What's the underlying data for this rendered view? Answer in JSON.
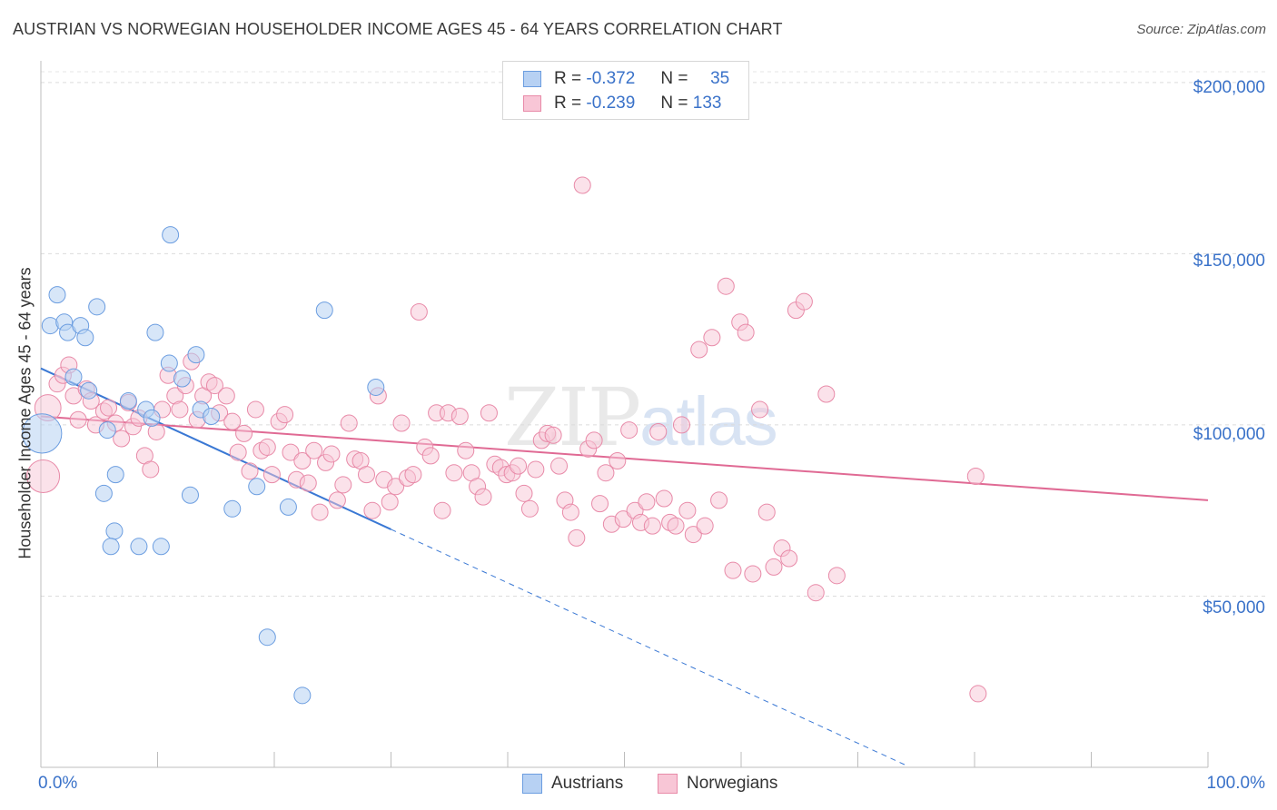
{
  "header": {
    "title": "AUSTRIAN VS NORWEGIAN HOUSEHOLDER INCOME AGES 45 - 64 YEARS CORRELATION CHART",
    "source": "Source: ZipAtlas.com"
  },
  "watermark": {
    "zip": "ZIP",
    "atlas": "atlas"
  },
  "legend": {
    "rows": [
      {
        "r_label": "R =",
        "r_value": "-0.372",
        "n_label": "N =",
        "n_value": "35"
      },
      {
        "r_label": "R =",
        "r_value": "-0.239",
        "n_label": "N =",
        "n_value": "133"
      }
    ]
  },
  "colors": {
    "austrians_fill": "#b7d1f3",
    "austrians_stroke": "#6b9de0",
    "austrians_line": "#3a78d4",
    "norwegians_fill": "#f8c6d6",
    "norwegians_stroke": "#e88aa8",
    "norwegians_line": "#e06a94",
    "tick_text": "#3a72c9"
  },
  "chart_data": {
    "type": "scatter",
    "title": "AUSTRIAN VS NORWEGIAN HOUSEHOLDER INCOME AGES 45 - 64 YEARS CORRELATION CHART",
    "xlabel": "",
    "ylabel": "Householder Income Ages 45 - 64 years",
    "xlim": [
      0,
      100
    ],
    "ylim": [
      0,
      205000
    ],
    "x_ticks": [
      "0.0%",
      "100.0%"
    ],
    "y_ticks": [
      {
        "value": 50000,
        "label": "$50,000"
      },
      {
        "value": 100000,
        "label": "$100,000"
      },
      {
        "value": 150000,
        "label": "$150,000"
      },
      {
        "value": 200000,
        "label": "$200,000"
      }
    ],
    "grid": true,
    "legend_position": "bottom-center",
    "series": [
      {
        "name": "Austrians",
        "trend": {
          "x": [
            0,
            30
          ],
          "y": [
            116500,
            69500
          ],
          "dashed_to_x": 74,
          "dashed_to_y": 800
        },
        "points": [
          [
            0.1,
            97500,
            2.4
          ],
          [
            1.4,
            138000,
            1
          ],
          [
            0.8,
            129000,
            1
          ],
          [
            2.0,
            130000,
            1
          ],
          [
            2.3,
            127000,
            1
          ],
          [
            3.4,
            129000,
            1
          ],
          [
            3.8,
            125500,
            1
          ],
          [
            4.8,
            134500,
            1
          ],
          [
            2.8,
            114000,
            1
          ],
          [
            4.1,
            110000,
            1
          ],
          [
            5.7,
            98500,
            1
          ],
          [
            7.5,
            107000,
            1
          ],
          [
            9.0,
            104500,
            1
          ],
          [
            9.5,
            102000,
            1
          ],
          [
            9.8,
            127000,
            1
          ],
          [
            11.1,
            155500,
            1
          ],
          [
            11.0,
            118000,
            1
          ],
          [
            12.1,
            113500,
            1
          ],
          [
            13.3,
            120500,
            1
          ],
          [
            13.7,
            104500,
            1
          ],
          [
            14.6,
            102500,
            1
          ],
          [
            5.4,
            80000,
            1
          ],
          [
            6.3,
            69000,
            1
          ],
          [
            6.4,
            85500,
            1
          ],
          [
            8.4,
            64500,
            1
          ],
          [
            6.0,
            64500,
            1
          ],
          [
            10.3,
            64500,
            1
          ],
          [
            12.8,
            79500,
            1
          ],
          [
            16.4,
            75500,
            1
          ],
          [
            18.5,
            82000,
            1
          ],
          [
            21.2,
            76000,
            1
          ],
          [
            24.3,
            133500,
            1
          ],
          [
            28.7,
            111000,
            1
          ],
          [
            19.4,
            38000,
            1
          ],
          [
            22.4,
            21000,
            1
          ]
        ]
      },
      {
        "name": "Norwegians",
        "trend": {
          "x": [
            0,
            100
          ],
          "y": [
            102500,
            78000
          ]
        },
        "points": [
          [
            0.2,
            85000,
            2.0
          ],
          [
            0.6,
            105000,
            1.6
          ],
          [
            1.4,
            112000,
            1
          ],
          [
            1.9,
            114500,
            1
          ],
          [
            2.4,
            117500,
            1
          ],
          [
            2.8,
            108500,
            1
          ],
          [
            3.2,
            101500,
            1
          ],
          [
            3.9,
            110500,
            1
          ],
          [
            4.3,
            107000,
            1
          ],
          [
            4.7,
            100000,
            1
          ],
          [
            5.4,
            104000,
            1
          ],
          [
            5.8,
            105000,
            1
          ],
          [
            6.4,
            100500,
            1
          ],
          [
            6.9,
            96000,
            1
          ],
          [
            7.5,
            106500,
            1
          ],
          [
            7.9,
            99500,
            1
          ],
          [
            8.4,
            102000,
            1
          ],
          [
            8.9,
            91000,
            1
          ],
          [
            9.4,
            87000,
            1
          ],
          [
            9.9,
            98000,
            1
          ],
          [
            10.4,
            104500,
            1
          ],
          [
            10.9,
            114500,
            1
          ],
          [
            11.5,
            108500,
            1
          ],
          [
            11.9,
            104500,
            1
          ],
          [
            12.4,
            111500,
            1
          ],
          [
            12.9,
            118500,
            1
          ],
          [
            13.4,
            101500,
            1
          ],
          [
            13.9,
            108500,
            1
          ],
          [
            14.4,
            112500,
            1
          ],
          [
            14.9,
            111500,
            1
          ],
          [
            15.3,
            103500,
            1
          ],
          [
            15.9,
            108500,
            1
          ],
          [
            16.4,
            101000,
            1
          ],
          [
            16.9,
            92000,
            1
          ],
          [
            17.4,
            97500,
            1
          ],
          [
            17.9,
            86500,
            1
          ],
          [
            18.4,
            104500,
            1
          ],
          [
            18.9,
            92500,
            1
          ],
          [
            19.4,
            93500,
            1
          ],
          [
            19.8,
            85500,
            1
          ],
          [
            20.4,
            101000,
            1
          ],
          [
            20.9,
            103000,
            1
          ],
          [
            21.4,
            92000,
            1
          ],
          [
            21.9,
            84000,
            1
          ],
          [
            22.4,
            89500,
            1
          ],
          [
            22.9,
            83000,
            1
          ],
          [
            23.4,
            92500,
            1
          ],
          [
            23.9,
            74500,
            1
          ],
          [
            24.4,
            89000,
            1
          ],
          [
            24.9,
            91500,
            1
          ],
          [
            25.4,
            78000,
            1
          ],
          [
            25.9,
            82500,
            1
          ],
          [
            26.4,
            100500,
            1
          ],
          [
            26.9,
            90000,
            1
          ],
          [
            27.4,
            89500,
            1
          ],
          [
            27.9,
            85500,
            1
          ],
          [
            28.4,
            75000,
            1
          ],
          [
            28.9,
            108500,
            1
          ],
          [
            29.4,
            84000,
            1
          ],
          [
            29.9,
            77500,
            1
          ],
          [
            30.4,
            82000,
            1
          ],
          [
            30.9,
            100500,
            1
          ],
          [
            31.4,
            84500,
            1
          ],
          [
            31.9,
            85500,
            1
          ],
          [
            32.4,
            133000,
            1
          ],
          [
            32.9,
            93500,
            1
          ],
          [
            33.4,
            91000,
            1
          ],
          [
            33.9,
            103500,
            1
          ],
          [
            34.4,
            75000,
            1
          ],
          [
            34.9,
            103500,
            1
          ],
          [
            35.4,
            86000,
            1
          ],
          [
            35.9,
            102500,
            1
          ],
          [
            36.4,
            92500,
            1
          ],
          [
            36.9,
            86000,
            1
          ],
          [
            37.4,
            82000,
            1
          ],
          [
            37.9,
            79000,
            1
          ],
          [
            38.4,
            103500,
            1
          ],
          [
            38.9,
            88500,
            1
          ],
          [
            39.4,
            87500,
            1
          ],
          [
            39.9,
            85500,
            1
          ],
          [
            40.4,
            86000,
            1
          ],
          [
            40.9,
            88000,
            1
          ],
          [
            41.4,
            80000,
            1
          ],
          [
            41.9,
            75500,
            1
          ],
          [
            42.4,
            87000,
            1
          ],
          [
            42.9,
            95500,
            1
          ],
          [
            43.4,
            97500,
            1
          ],
          [
            43.9,
            97000,
            1
          ],
          [
            44.4,
            88000,
            1
          ],
          [
            44.9,
            78000,
            1
          ],
          [
            45.4,
            74500,
            1
          ],
          [
            45.9,
            67000,
            1
          ],
          [
            46.4,
            170000,
            1
          ],
          [
            46.9,
            93000,
            1
          ],
          [
            47.4,
            95500,
            1
          ],
          [
            47.9,
            77000,
            1
          ],
          [
            48.4,
            86000,
            1
          ],
          [
            48.9,
            71000,
            1
          ],
          [
            49.4,
            89500,
            1
          ],
          [
            49.9,
            72500,
            1
          ],
          [
            50.4,
            98500,
            1
          ],
          [
            50.9,
            75000,
            1
          ],
          [
            51.4,
            71500,
            1
          ],
          [
            51.9,
            77500,
            1
          ],
          [
            52.4,
            70500,
            1
          ],
          [
            52.9,
            98000,
            1
          ],
          [
            53.4,
            78500,
            1
          ],
          [
            53.9,
            71500,
            1
          ],
          [
            54.4,
            70500,
            1
          ],
          [
            54.9,
            100000,
            1
          ],
          [
            55.4,
            75000,
            1
          ],
          [
            55.9,
            68000,
            1
          ],
          [
            56.4,
            122000,
            1
          ],
          [
            56.9,
            70500,
            1
          ],
          [
            57.5,
            125500,
            1
          ],
          [
            58.1,
            78000,
            1
          ],
          [
            58.7,
            140500,
            1
          ],
          [
            59.3,
            57500,
            1
          ],
          [
            59.9,
            130000,
            1
          ],
          [
            60.4,
            127000,
            1
          ],
          [
            61.0,
            56500,
            1
          ],
          [
            61.6,
            104500,
            1
          ],
          [
            62.2,
            74500,
            1
          ],
          [
            62.8,
            58500,
            1
          ],
          [
            63.5,
            64000,
            1
          ],
          [
            64.1,
            61000,
            1
          ],
          [
            64.7,
            133500,
            1
          ],
          [
            65.4,
            136000,
            1
          ],
          [
            66.4,
            51000,
            1
          ],
          [
            67.3,
            109000,
            1
          ],
          [
            68.2,
            56000,
            1
          ],
          [
            80.1,
            85000,
            1
          ],
          [
            80.3,
            21500,
            1
          ]
        ]
      }
    ]
  },
  "bottom_legend": {
    "items": [
      "Austrians",
      "Norwegians"
    ]
  }
}
